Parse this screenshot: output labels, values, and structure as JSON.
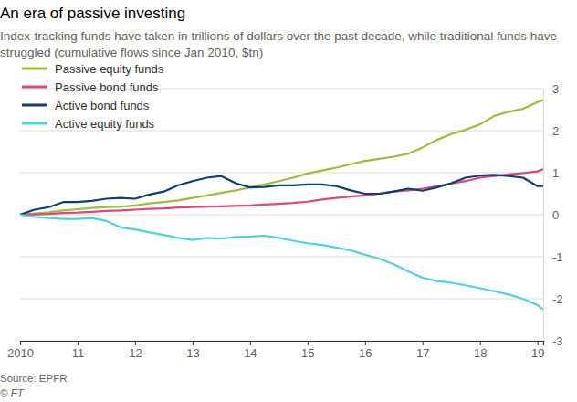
{
  "chart_data": {
    "type": "line",
    "title": "An era of passive investing",
    "subtitle": "Index-tracking funds have taken in trillions of dollars over the past decade, while traditional funds have struggled (cumulative flows since Jan 2010, $tn)",
    "source": "Source: EPFR",
    "credit": "© FT",
    "x": [
      2010,
      2010.25,
      2010.5,
      2010.75,
      2011,
      2011.25,
      2011.5,
      2011.75,
      2012,
      2012.25,
      2012.5,
      2012.75,
      2013,
      2013.25,
      2013.5,
      2013.75,
      2014,
      2014.25,
      2014.5,
      2014.75,
      2015,
      2015.25,
      2015.5,
      2015.75,
      2016,
      2016.25,
      2016.5,
      2016.75,
      2017,
      2017.25,
      2017.5,
      2017.75,
      2018,
      2018.25,
      2018.5,
      2018.75,
      2019,
      2019.1
    ],
    "xlim": [
      2010,
      2019.1
    ],
    "xticks": [
      2010,
      {
        "value": 2011,
        "label": "11"
      },
      {
        "value": 2012,
        "label": "12"
      },
      {
        "value": 2013,
        "label": "13"
      },
      {
        "value": 2014,
        "label": "14"
      },
      {
        "value": 2015,
        "label": "15"
      },
      {
        "value": 2016,
        "label": "16"
      },
      {
        "value": 2017,
        "label": "17"
      },
      {
        "value": 2018,
        "label": "18"
      },
      {
        "value": 2019,
        "label": "19"
      }
    ],
    "ylim": [
      -3,
      3
    ],
    "yticks": [
      -3,
      -2,
      -1,
      0,
      1,
      2,
      3
    ],
    "grid": true,
    "legend": "upper left",
    "series": [
      {
        "name": "Passive equity funds",
        "color": "#9bbd3c",
        "values": [
          0,
          0.03,
          0.06,
          0.1,
          0.13,
          0.16,
          0.18,
          0.19,
          0.22,
          0.27,
          0.3,
          0.34,
          0.4,
          0.46,
          0.52,
          0.58,
          0.65,
          0.72,
          0.8,
          0.88,
          0.98,
          1.05,
          1.12,
          1.2,
          1.28,
          1.33,
          1.38,
          1.45,
          1.6,
          1.78,
          1.92,
          2.02,
          2.15,
          2.35,
          2.45,
          2.52,
          2.68,
          2.72
        ]
      },
      {
        "name": "Passive bond funds",
        "color": "#e0457b",
        "values": [
          0,
          0.01,
          0.02,
          0.04,
          0.05,
          0.07,
          0.09,
          0.1,
          0.12,
          0.14,
          0.15,
          0.17,
          0.18,
          0.19,
          0.2,
          0.21,
          0.22,
          0.24,
          0.26,
          0.28,
          0.31,
          0.36,
          0.4,
          0.43,
          0.46,
          0.5,
          0.55,
          0.58,
          0.62,
          0.68,
          0.74,
          0.8,
          0.88,
          0.92,
          0.96,
          0.99,
          1.03,
          1.08
        ]
      },
      {
        "name": "Active bond funds",
        "color": "#0f3d7a",
        "values": [
          0,
          0.12,
          0.18,
          0.3,
          0.3,
          0.33,
          0.38,
          0.4,
          0.38,
          0.48,
          0.55,
          0.7,
          0.8,
          0.88,
          0.92,
          0.75,
          0.65,
          0.66,
          0.7,
          0.7,
          0.72,
          0.72,
          0.68,
          0.58,
          0.5,
          0.5,
          0.55,
          0.62,
          0.57,
          0.65,
          0.75,
          0.88,
          0.93,
          0.95,
          0.92,
          0.88,
          0.68,
          0.68
        ]
      },
      {
        "name": "Active equity funds",
        "color": "#4fd2dc",
        "values": [
          0,
          -0.05,
          -0.08,
          -0.1,
          -0.1,
          -0.08,
          -0.15,
          -0.3,
          -0.35,
          -0.42,
          -0.48,
          -0.55,
          -0.6,
          -0.55,
          -0.57,
          -0.53,
          -0.52,
          -0.5,
          -0.55,
          -0.62,
          -0.68,
          -0.72,
          -0.78,
          -0.85,
          -0.95,
          -1.05,
          -1.18,
          -1.35,
          -1.5,
          -1.58,
          -1.62,
          -1.68,
          -1.75,
          -1.82,
          -1.9,
          -2.0,
          -2.15,
          -2.25
        ]
      }
    ]
  }
}
